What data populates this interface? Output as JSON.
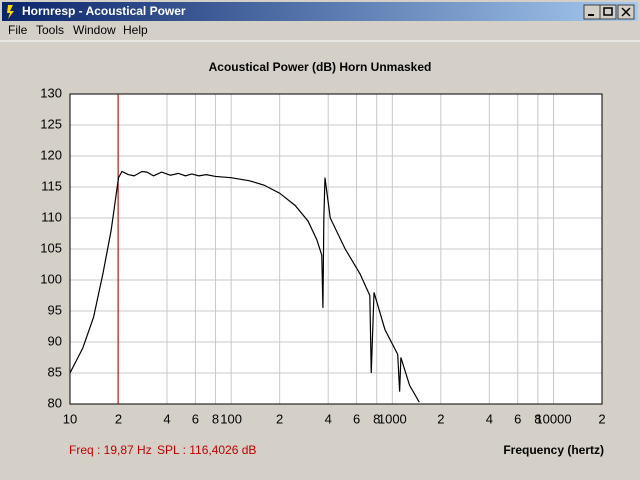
{
  "window": {
    "title": "Hornresp - Acoustical Power",
    "menu": [
      "File",
      "Tools",
      "Window",
      "Help"
    ]
  },
  "chart_data": {
    "type": "line",
    "title": "Acoustical Power (dB)    Horn    Unmasked",
    "x_label": "Frequency (hertz)",
    "log_x": true,
    "grid": true,
    "x": [
      10,
      12,
      14,
      16,
      18,
      20,
      21,
      23,
      25,
      28,
      30,
      33,
      37,
      42,
      47,
      52,
      57,
      63,
      70,
      80,
      100,
      130,
      160,
      200,
      250,
      300,
      340,
      365,
      371,
      376,
      382,
      412,
      510,
      630,
      725,
      740,
      770,
      900,
      1080,
      1110,
      1130,
      1280,
      1470
    ],
    "series": [
      {
        "name": "Acoustical Power",
        "color": "#000000",
        "values": [
          85,
          89,
          94,
          101,
          108,
          116.5,
          117.5,
          117,
          116.8,
          117.5,
          117.4,
          116.8,
          117.4,
          116.9,
          117.2,
          116.8,
          117.1,
          116.8,
          117,
          116.7,
          116.5,
          116,
          115.3,
          114,
          112,
          109.5,
          106.5,
          104,
          95.5,
          110,
          116.5,
          110,
          105,
          101,
          97.5,
          85,
          98,
          92,
          88,
          82,
          87.5,
          83,
          80.3
        ]
      }
    ],
    "xlim": [
      10,
      20000
    ],
    "ylim": [
      80,
      130
    ],
    "xticks": [
      {
        "value": 10,
        "label": "10"
      },
      {
        "value": 20,
        "label": "2"
      },
      {
        "value": 40,
        "label": "4"
      },
      {
        "value": 60,
        "label": "6"
      },
      {
        "value": 80,
        "label": "8"
      },
      {
        "value": 100,
        "label": "100"
      },
      {
        "value": 200,
        "label": "2"
      },
      {
        "value": 400,
        "label": "4"
      },
      {
        "value": 600,
        "label": "6"
      },
      {
        "value": 800,
        "label": "8"
      },
      {
        "value": 1000,
        "label": "1000"
      },
      {
        "value": 2000,
        "label": "2"
      },
      {
        "value": 4000,
        "label": "4"
      },
      {
        "value": 6000,
        "label": "6"
      },
      {
        "value": 8000,
        "label": "8"
      },
      {
        "value": 10000,
        "label": "10000"
      },
      {
        "value": 20000,
        "label": "2"
      }
    ],
    "yticks": [
      80,
      85,
      90,
      95,
      100,
      105,
      110,
      115,
      120,
      125,
      130
    ],
    "cursor": {
      "x": 19.87,
      "color": "#c00000",
      "freq_label": "Freq : 19,87 Hz",
      "spl_label": "SPL : 116,4026 dB"
    }
  }
}
